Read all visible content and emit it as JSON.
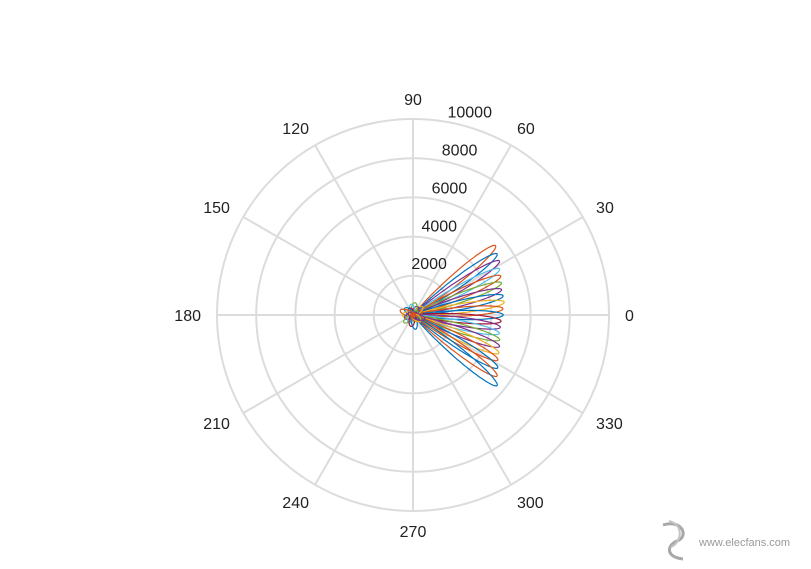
{
  "chart_data": {
    "type": "polar-line",
    "theta_ticks": [
      "0",
      "30",
      "60",
      "90",
      "120",
      "150",
      "180",
      "210",
      "240",
      "270",
      "300",
      "330"
    ],
    "theta_tick_values": [
      0,
      30,
      60,
      90,
      120,
      150,
      180,
      210,
      240,
      270,
      300,
      330
    ],
    "r_ticks": [
      "2000",
      "4000",
      "6000",
      "8000",
      "10000"
    ],
    "r_tick_values": [
      2000,
      4000,
      6000,
      8000,
      10000
    ],
    "rlim": [
      0,
      10000
    ],
    "r_label_angle": 75,
    "grid": true,
    "series_colors": [
      "#0072BD",
      "#D95319",
      "#EDB120",
      "#7E2F8E",
      "#77AC30",
      "#4DBEEE",
      "#A2142F"
    ],
    "lobes": [
      {
        "angle": 40,
        "peak": 5500,
        "color": "#D95319"
      },
      {
        "angle": 36,
        "peak": 5300,
        "color": "#0072BD"
      },
      {
        "angle": 32,
        "peak": 5200,
        "color": "#7E2F8E"
      },
      {
        "angle": 28,
        "peak": 5000,
        "color": "#4DBEEE"
      },
      {
        "angle": 24,
        "peak": 4900,
        "color": "#D95319"
      },
      {
        "angle": 20,
        "peak": 4800,
        "color": "#77AC30"
      },
      {
        "angle": 16,
        "peak": 4700,
        "color": "#7E2F8E"
      },
      {
        "angle": 12,
        "peak": 4700,
        "color": "#0072BD"
      },
      {
        "angle": 8,
        "peak": 4700,
        "color": "#EDB120"
      },
      {
        "angle": 4,
        "peak": 4600,
        "color": "#D95319"
      },
      {
        "angle": 0,
        "peak": 4600,
        "color": "#0072BD"
      },
      {
        "angle": -4,
        "peak": 4500,
        "color": "#A2142F"
      },
      {
        "angle": -8,
        "peak": 4500,
        "color": "#7E2F8E"
      },
      {
        "angle": -12,
        "peak": 4500,
        "color": "#4DBEEE"
      },
      {
        "angle": -16,
        "peak": 4600,
        "color": "#77AC30"
      },
      {
        "angle": -20,
        "peak": 4700,
        "color": "#7E2F8E"
      },
      {
        "angle": -24,
        "peak": 4800,
        "color": "#EDB120"
      },
      {
        "angle": -28,
        "peak": 4900,
        "color": "#D95319"
      },
      {
        "angle": -32,
        "peak": 5100,
        "color": "#0072BD"
      },
      {
        "angle": -36,
        "peak": 5300,
        "color": "#D95319"
      },
      {
        "angle": -40,
        "peak": 5600,
        "color": "#0072BD"
      }
    ],
    "lobe_width_deg": 8
  },
  "watermark": {
    "text": "www.elecfans.com",
    "logo_color": "#9a9a9a"
  }
}
